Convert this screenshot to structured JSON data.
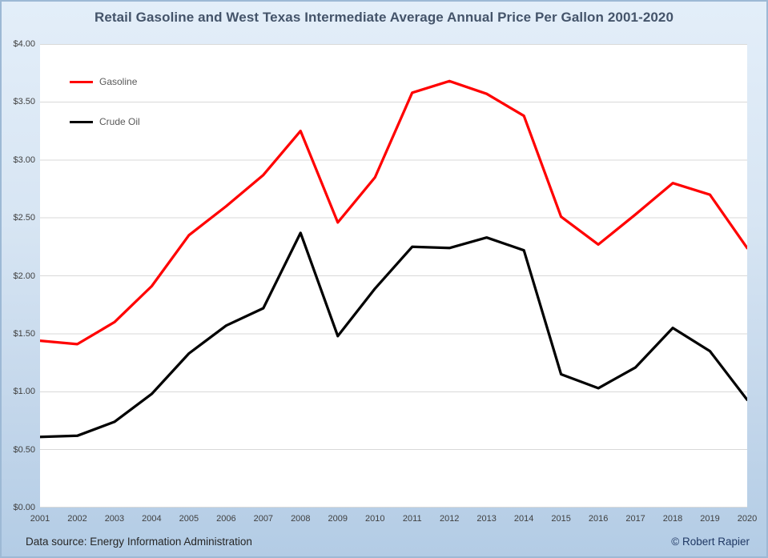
{
  "chart_data": {
    "type": "line",
    "title": "Retail Gasoline and West Texas Intermediate Average Annual Price Per Gallon 2001-2020",
    "x": [
      2001,
      2002,
      2003,
      2004,
      2005,
      2006,
      2007,
      2008,
      2009,
      2010,
      2011,
      2012,
      2013,
      2014,
      2015,
      2016,
      2017,
      2018,
      2019,
      2020
    ],
    "series": [
      {
        "name": "Gasoline",
        "color": "#ff0000",
        "values": [
          1.44,
          1.41,
          1.6,
          1.91,
          2.35,
          2.6,
          2.87,
          3.25,
          2.46,
          2.85,
          3.58,
          3.68,
          3.57,
          3.38,
          2.51,
          2.27,
          2.53,
          2.8,
          2.7,
          2.24
        ]
      },
      {
        "name": "Crude Oil",
        "color": "#000000",
        "values": [
          0.61,
          0.62,
          0.74,
          0.98,
          1.33,
          1.57,
          1.72,
          2.37,
          1.48,
          1.89,
          2.25,
          2.24,
          2.33,
          2.22,
          1.15,
          1.03,
          1.21,
          1.55,
          1.35,
          0.93
        ]
      }
    ],
    "ylim": [
      0,
      4.0
    ],
    "ytick_step": 0.5,
    "ytick_labels": [
      "$0.00",
      "$0.50",
      "$1.00",
      "$1.50",
      "$2.00",
      "$2.50",
      "$3.00",
      "$3.50",
      "$4.00"
    ],
    "xlabel": "",
    "ylabel": "",
    "grid": true,
    "gridline_color": "#d9d9d9",
    "legend_position": "top-left-inside",
    "plot_background": "#ffffff"
  },
  "footer": {
    "data_source": "Data source: Energy Information Administration",
    "copyright": "© Robert Rapier"
  },
  "colors": {
    "title_text": "#44546a",
    "axis_text": "#404040",
    "legend_text": "#595959",
    "source_text": "#262626",
    "copyright_text": "#1f3864",
    "background_top": "#e3eef9",
    "background_bottom": "#b3cce5",
    "border": "#9db9d5"
  }
}
